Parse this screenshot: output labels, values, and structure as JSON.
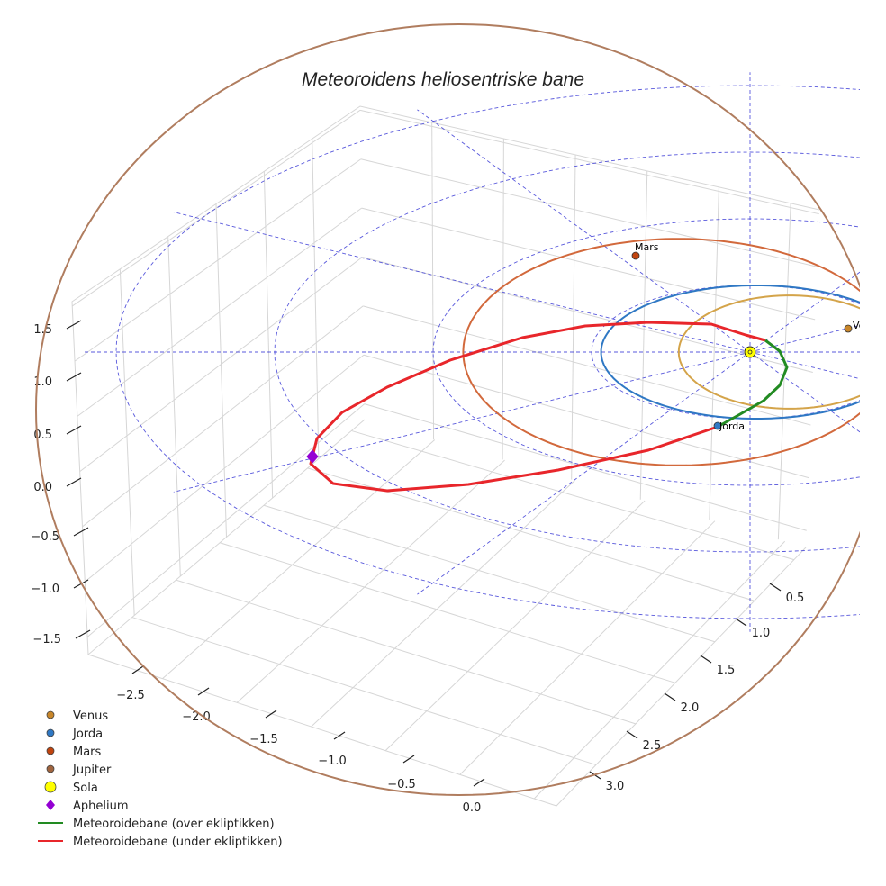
{
  "chart_data": {
    "type": "line",
    "projection": "3d",
    "title": "Meteoroidens heliosentriske bane",
    "xlabel": "",
    "ylabel": "",
    "zlabel": "",
    "x_ticks": [
      "−2.5",
      "−2.0",
      "−1.5",
      "−1.0",
      "−0.5",
      "0.0"
    ],
    "y_ticks": [
      "0.5",
      "1.0",
      "1.5",
      "2.0",
      "2.5",
      "3.0"
    ],
    "z_ticks": [
      "−1.5",
      "−1.0",
      "−0.5",
      "0.0",
      "0.5",
      "1.0",
      "1.5"
    ],
    "grid": true,
    "ecliptic_rings_au": [
      1,
      2,
      3,
      4
    ],
    "legend_position": "lower-left",
    "legend": [
      {
        "label": "Venus",
        "color": "#c8862a",
        "marker": "circle"
      },
      {
        "label": "Jorda",
        "color": "#2f78c4",
        "marker": "circle"
      },
      {
        "label": "Mars",
        "color": "#c1440e",
        "marker": "circle"
      },
      {
        "label": "Jupiter",
        "color": "#a0643e",
        "marker": "circle"
      },
      {
        "label": "Sola",
        "color": "#ffff00",
        "marker": "circle"
      },
      {
        "label": "Aphelium",
        "color": "#9400d3",
        "marker": "diamond"
      },
      {
        "label": "Meteoroidebane (over ekliptikken)",
        "color": "#228b22",
        "marker": "line"
      },
      {
        "label": "Meteoroidebane (under ekliptikken)",
        "color": "#e8262b",
        "marker": "line"
      }
    ],
    "planets": [
      {
        "name": "Venus",
        "orbit_radius_au": 0.72,
        "label": "Venus",
        "color": "#c8862a",
        "orbit_color": "#d4a44a"
      },
      {
        "name": "Jorda",
        "orbit_radius_au": 1.0,
        "label": "Jorda",
        "color": "#2f78c4",
        "orbit_color": "#2f78c4"
      },
      {
        "name": "Mars",
        "orbit_radius_au": 1.52,
        "label": "Mars",
        "color": "#c1440e",
        "orbit_color": "#d2693c"
      },
      {
        "name": "Jupiter",
        "orbit_radius_au": 5.2,
        "label": "",
        "color": "#a0643e",
        "orbit_color": "#b07d5f"
      }
    ],
    "sun": {
      "label": "Sola",
      "x": 0,
      "y": 0,
      "z": 0
    },
    "aphelion": {
      "label": "Aphelium",
      "x": -2.15,
      "y": 2.2,
      "z": -0.15
    },
    "series": [
      {
        "name": "Meteoroidebane (over ekliptikken)",
        "color": "#228b22"
      },
      {
        "name": "Meteoroidebane (under ekliptikken)",
        "color": "#e8262b"
      }
    ]
  }
}
